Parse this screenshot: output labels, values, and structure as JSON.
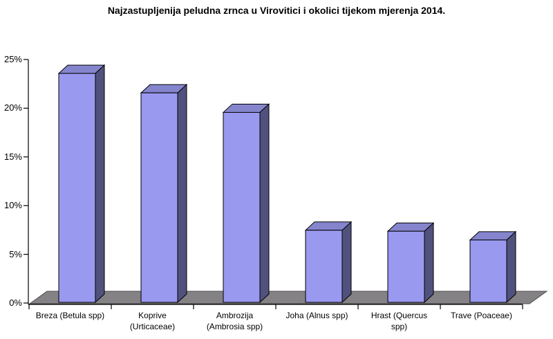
{
  "page": {
    "background": "#FFFFFF"
  },
  "chart_data": {
    "type": "bar",
    "style": "3d-column",
    "title": "Najzastupljenija peludna zrnca u Virovitici i okolici tijekom mjerenja 2014.",
    "categories": [
      "Breza (Betula spp)",
      "Koprive (Urticaceae)",
      "Ambrozija (Ambrosia spp)",
      "Joha (Alnus spp)",
      "Hrast (Quercus spp)",
      "Trave (Poaceae)"
    ],
    "category_label_lines": [
      [
        "Breza (Betula spp)"
      ],
      [
        "Koprive",
        "(Urticaceae)"
      ],
      [
        "Ambrozija",
        "(Ambrosia spp)"
      ],
      [
        "Joha (Alnus spp)"
      ],
      [
        "Hrast (Quercus",
        "spp)"
      ],
      [
        "Trave (Poaceae)"
      ]
    ],
    "values": [
      23.5,
      21.5,
      19.5,
      7.4,
      7.3,
      6.4
    ],
    "value_unit": "%",
    "xlabel": "",
    "ylabel": "",
    "ylim": [
      0,
      25
    ],
    "y_tick_step": 5,
    "y_tick_labels": [
      "0%",
      "5%",
      "10%",
      "15%",
      "20%",
      "25%"
    ],
    "grid": false,
    "legend": "none",
    "colors": {
      "bar_front": "#9999F0",
      "bar_top": "#8585CE",
      "bar_side": "#51517E",
      "bar_outline": "#000000",
      "floor": "#848284",
      "floor_outline": "#4D4D4D",
      "axis": "#000000",
      "text": "#000000",
      "background": "#FFFFFF"
    }
  }
}
